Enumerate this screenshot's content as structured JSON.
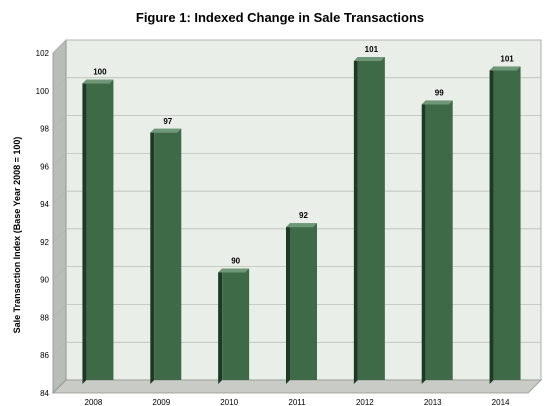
{
  "chart_data": {
    "type": "bar",
    "title": "Figure 1: Indexed Change in Sale Transactions",
    "xlabel": "",
    "ylabel": "Sale Transaction Index (Base Year 2008 = 100)",
    "categories": [
      "2008",
      "2009",
      "2010",
      "2011",
      "2012",
      "2013",
      "2014"
    ],
    "values": [
      99.9,
      97.3,
      89.9,
      92.3,
      101.1,
      98.8,
      100.6
    ],
    "data_labels": [
      "100",
      "97",
      "90",
      "92",
      "101",
      "99",
      "101"
    ],
    "ylim": [
      84,
      102
    ],
    "yticks": [
      "84",
      "86",
      "88",
      "90",
      "92",
      "94",
      "96",
      "98",
      "100",
      "102"
    ],
    "grid": true,
    "legend": "none",
    "colors": {
      "bar_front": "#3f6a47",
      "bar_side": "#1e3a25",
      "bar_top": "#6f9878",
      "wall": "#eaeee9",
      "wall_left": "#b9bdb8",
      "floor": "#c8cbc6",
      "grid": "#b0b6af"
    }
  }
}
